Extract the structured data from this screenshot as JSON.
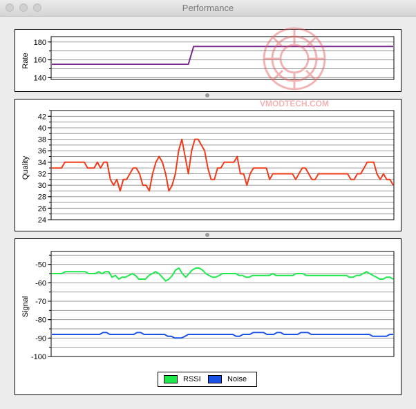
{
  "window": {
    "title": "Performance"
  },
  "watermark": {
    "text": "VMODTECH.COM"
  },
  "charts": [
    {
      "type": "line",
      "ylabel": "Rate",
      "ylim": [
        138,
        186
      ],
      "yticks": [
        140,
        160,
        180
      ],
      "ygrid": [
        140,
        150,
        160,
        170,
        180
      ],
      "series": [
        {
          "color": "#7a2a8e",
          "values": [
            155,
            155,
            155,
            155,
            155,
            155,
            155,
            155,
            155,
            155,
            155,
            155,
            155,
            155,
            155,
            155,
            155,
            155,
            155,
            155,
            155,
            155,
            155,
            155,
            155,
            155,
            155,
            175,
            175,
            175,
            175,
            175,
            175,
            175,
            175,
            175,
            175,
            175,
            175,
            175,
            175,
            175,
            175,
            175,
            175,
            175,
            175,
            175,
            175,
            175,
            175,
            175,
            175,
            175,
            175,
            175,
            175,
            175,
            175,
            175,
            175,
            175,
            175,
            175,
            175,
            175
          ]
        }
      ]
    },
    {
      "type": "line",
      "ylabel": "Quality",
      "ylim": [
        24,
        43
      ],
      "yticks": [
        24,
        26,
        28,
        30,
        32,
        34,
        36,
        38,
        40,
        42
      ],
      "ygrid": [
        24,
        25,
        26,
        27,
        28,
        29,
        30,
        31,
        32,
        33,
        34,
        35,
        36,
        37,
        38,
        39,
        40,
        41,
        42,
        43
      ],
      "series": [
        {
          "color": "#f03a1a",
          "values": [
            33,
            33,
            33,
            33,
            34,
            34,
            34,
            34,
            34,
            34,
            34,
            33,
            33,
            33,
            34,
            33,
            34,
            34,
            31,
            30,
            31,
            29,
            31,
            31,
            32,
            33,
            33,
            32,
            30,
            30,
            29,
            32,
            34,
            35,
            34,
            32,
            29,
            30,
            32,
            36,
            38,
            35,
            32,
            36,
            38,
            38,
            37,
            36,
            33,
            31,
            31,
            33,
            33,
            34,
            34,
            34,
            34,
            35,
            32,
            32,
            30,
            32,
            33,
            33,
            33,
            33,
            33,
            31,
            32,
            32,
            32,
            32,
            32,
            32,
            32,
            31,
            32,
            33,
            33,
            32,
            31,
            31,
            32,
            32,
            32,
            32,
            32,
            32,
            32,
            32,
            32,
            32,
            31,
            31,
            32,
            32,
            33,
            34,
            34,
            34,
            32,
            31,
            32,
            31,
            31,
            30
          ]
        }
      ]
    },
    {
      "type": "line",
      "ylabel": "Signal",
      "ylim": [
        -100,
        -43
      ],
      "yticks": [
        -100,
        -90,
        -80,
        -70,
        -60,
        -50
      ],
      "ygrid": [
        -100,
        -95,
        -90,
        -85,
        -80,
        -75,
        -70,
        -65,
        -60,
        -55,
        -50,
        -45
      ],
      "series": [
        {
          "name": "RSSI",
          "color": "#1ee84c",
          "values": [
            -55,
            -55,
            -55,
            -55,
            -54,
            -54,
            -54,
            -54,
            -54,
            -54,
            -54,
            -55,
            -55,
            -55,
            -54,
            -55,
            -54,
            -54,
            -57,
            -56,
            -58,
            -57,
            -57,
            -56,
            -55,
            -56,
            -58,
            -58,
            -58,
            -56,
            -55,
            -54,
            -55,
            -57,
            -59,
            -58,
            -56,
            -53,
            -52,
            -55,
            -57,
            -55,
            -53,
            -52,
            -52,
            -53,
            -55,
            -56,
            -57,
            -57,
            -56,
            -55,
            -55,
            -55,
            -55,
            -55,
            -56,
            -56,
            -57,
            -57,
            -56,
            -56,
            -56,
            -56,
            -56,
            -56,
            -55,
            -56,
            -56,
            -56,
            -56,
            -56,
            -56,
            -55,
            -55,
            -55,
            -56,
            -56,
            -56,
            -56,
            -56,
            -56,
            -56,
            -56,
            -56,
            -56,
            -56,
            -56,
            -56,
            -57,
            -57,
            -56,
            -56,
            -55,
            -54,
            -55,
            -56,
            -57,
            -58,
            -58,
            -57,
            -57,
            -58
          ]
        },
        {
          "name": "Noise",
          "color": "#1a52e6",
          "values": [
            -88,
            -88,
            -88,
            -88,
            -88,
            -88,
            -88,
            -88,
            -88,
            -88,
            -88,
            -88,
            -88,
            -88,
            -88,
            -87,
            -87,
            -88,
            -88,
            -88,
            -88,
            -88,
            -88,
            -88,
            -88,
            -87,
            -87,
            -88,
            -88,
            -88,
            -88,
            -88,
            -88,
            -88,
            -89,
            -89,
            -90,
            -90,
            -90,
            -89,
            -88,
            -88,
            -88,
            -88,
            -88,
            -88,
            -88,
            -88,
            -88,
            -88,
            -88,
            -88,
            -88,
            -88,
            -89,
            -89,
            -88,
            -88,
            -88,
            -87,
            -87,
            -87,
            -87,
            -88,
            -88,
            -88,
            -87,
            -87,
            -88,
            -88,
            -88,
            -88,
            -88,
            -87,
            -87,
            -87,
            -88,
            -88,
            -88,
            -88,
            -88,
            -88,
            -88,
            -88,
            -88,
            -88,
            -88,
            -88,
            -88,
            -88,
            -88,
            -88,
            -88,
            -88,
            -89,
            -89,
            -89,
            -89,
            -89,
            -88,
            -88
          ]
        }
      ]
    }
  ],
  "legend": {
    "items": [
      {
        "label": "RSSI",
        "color": "#1ee84c"
      },
      {
        "label": "Noise",
        "color": "#1a52e6"
      }
    ]
  }
}
